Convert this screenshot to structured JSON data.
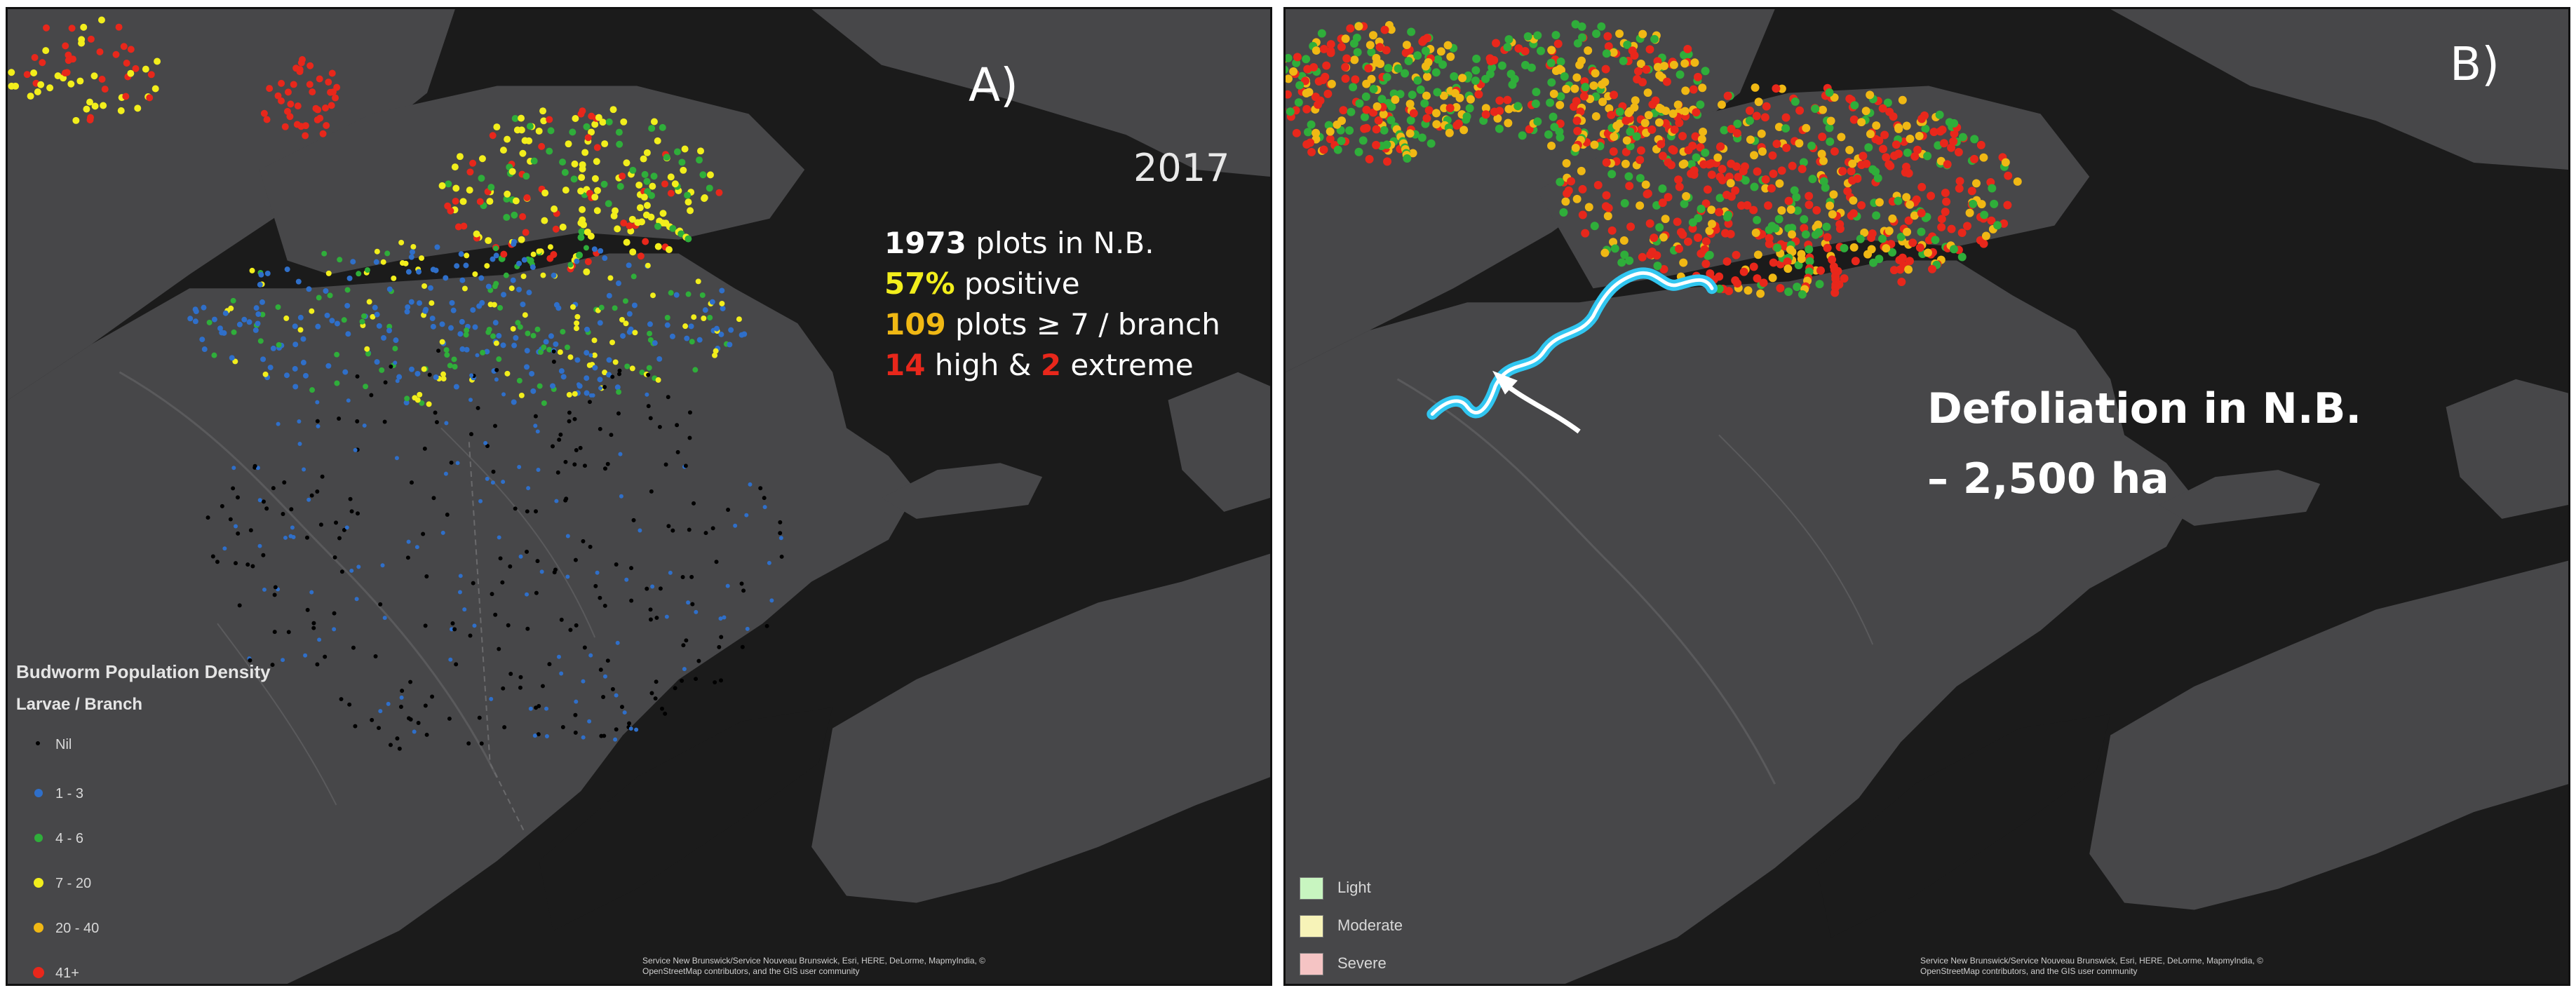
{
  "panel_a": {
    "label": "A)",
    "year": "2017",
    "stats": {
      "line1_num": "1973",
      "line1_text": " plots in N.B.",
      "line2_num": "57%",
      "line2_text": " positive",
      "line3_num": "109",
      "line3_text": " plots ≥ 7 / branch",
      "line4_num1": "14",
      "line4_mid": " high & ",
      "line4_num2": "2",
      "line4_text": " extreme"
    },
    "legend": {
      "title": "Budworm Population Density",
      "subtitle": "Larvae / Branch",
      "items": [
        {
          "label": "Nil",
          "color": "#000000"
        },
        {
          "label": "1 - 3",
          "color": "#2f6fc9"
        },
        {
          "label": "4 - 6",
          "color": "#2fae3a"
        },
        {
          "label": "7 - 20",
          "color": "#f2ee1c"
        },
        {
          "label": "20 - 40",
          "color": "#f0b814"
        },
        {
          "label": "41+",
          "color": "#e8271b"
        }
      ]
    },
    "attribution": "Service New Brunswick/Service Nouveau Brunswick, Esri, HERE, DeLorme, MapmyIndia, © OpenStreetMap contributors, and the GIS user community"
  },
  "panel_b": {
    "label": "B)",
    "annotation_line1": "Defoliation in N.B.",
    "annotation_line2": "– 2,500 ha",
    "outline_color": "#31c6f0",
    "legend": [
      {
        "label": "Light",
        "color": "#c8f5c0"
      },
      {
        "label": "Moderate",
        "color": "#f7f3b8"
      },
      {
        "label": "Severe",
        "color": "#f5c4c4"
      }
    ],
    "attribution": "Service New Brunswick/Service Nouveau Brunswick, Esri, HERE, DeLorme, MapmyIndia, © OpenStreetMap contributors, and the GIS user community"
  },
  "colors": {
    "land": "#474749",
    "water": "#1b1b1b",
    "severe": "#e8271b",
    "moderate": "#f0b814",
    "light": "#2fae3a"
  }
}
